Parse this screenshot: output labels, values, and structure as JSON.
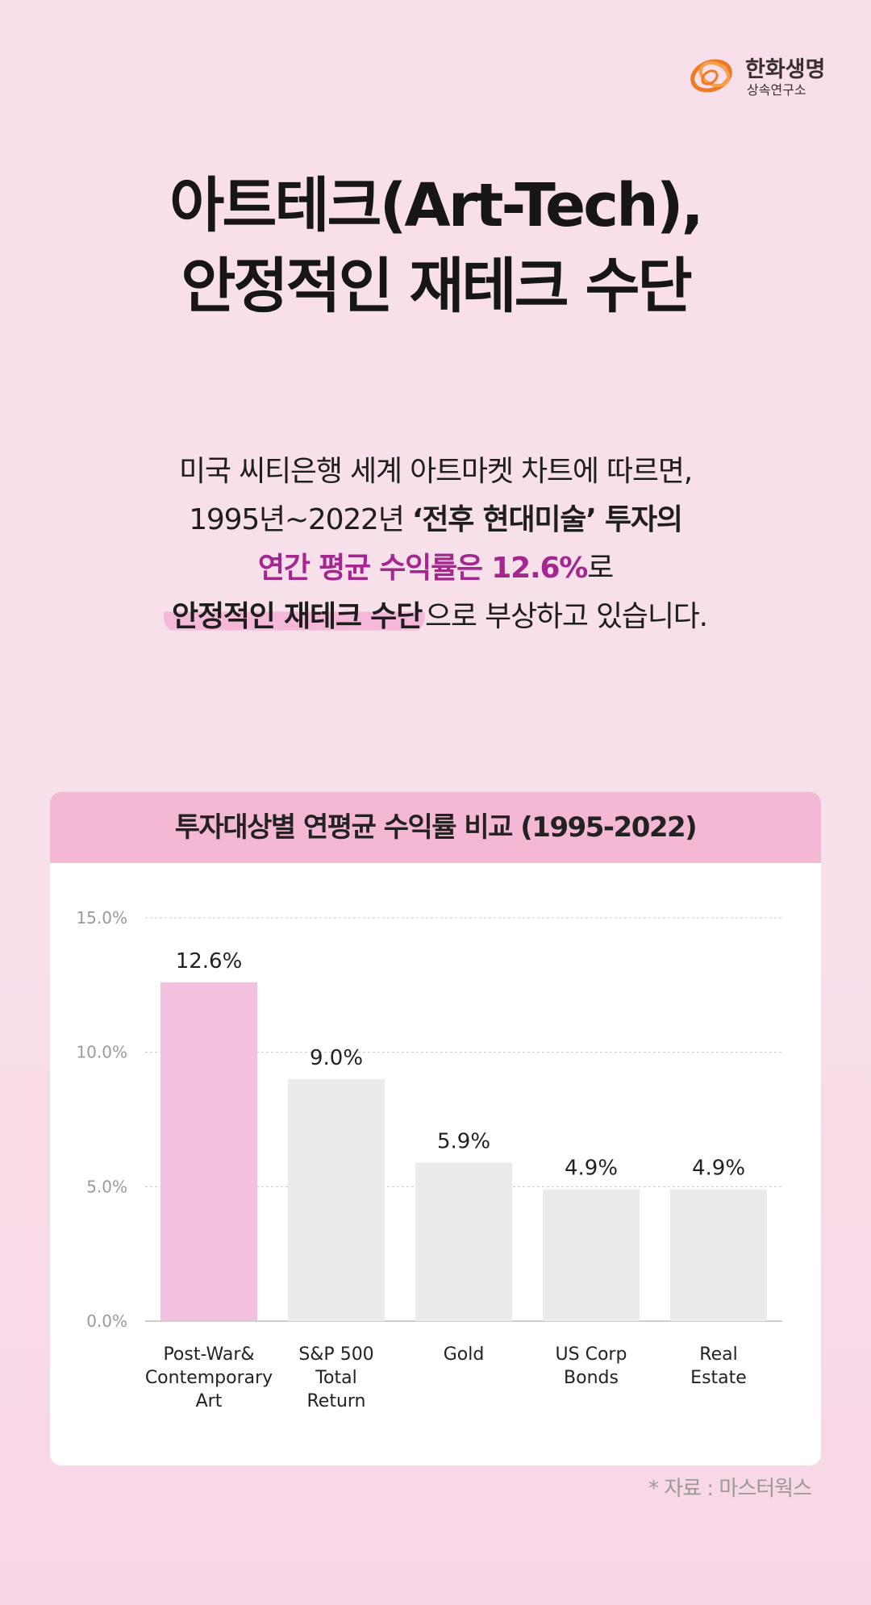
{
  "logo": {
    "name": "한화생명",
    "sub": "상속연구소",
    "color": "#f07a20"
  },
  "title": {
    "line1": "아트테크(Art-Tech),",
    "line2": "안정적인 재테크 수단"
  },
  "body": {
    "line1": "미국 씨티은행 세계 아트마켓 차트에 따르면,",
    "line2_a": "1995년~2022년 ",
    "line2_b": "‘전후 현대미술’ 투자의",
    "line3_a": "연간 평균 수익률은 12.6%",
    "line3_b": "로",
    "line4_a": "안정적인 재테크 수단",
    "line4_b": "으로 부상하고 있습니다."
  },
  "chart_data": {
    "type": "bar",
    "title": "투자대상별 연평균 수익률 비교 (1995-2022)",
    "categories": [
      [
        "Post-War&",
        "Contemporary",
        "Art"
      ],
      [
        "S&P 500",
        "Total",
        "Return"
      ],
      [
        "Gold"
      ],
      [
        "US Corp",
        "Bonds"
      ],
      [
        "Real",
        "Estate"
      ]
    ],
    "values": [
      12.6,
      9.0,
      5.9,
      4.9,
      4.9
    ],
    "value_labels": [
      "12.6%",
      "9.0%",
      "5.9%",
      "4.9%",
      "4.9%"
    ],
    "y_ticks": [
      "0.0%",
      "5.0%",
      "10.0%",
      "15.0%"
    ],
    "ylim": [
      0,
      15
    ],
    "grid": true,
    "colors": {
      "highlight": "#f2c1df",
      "default": "#ebebeb",
      "grid": "#c9c9c9"
    }
  },
  "source": "* 자료 : 마스터웍스"
}
